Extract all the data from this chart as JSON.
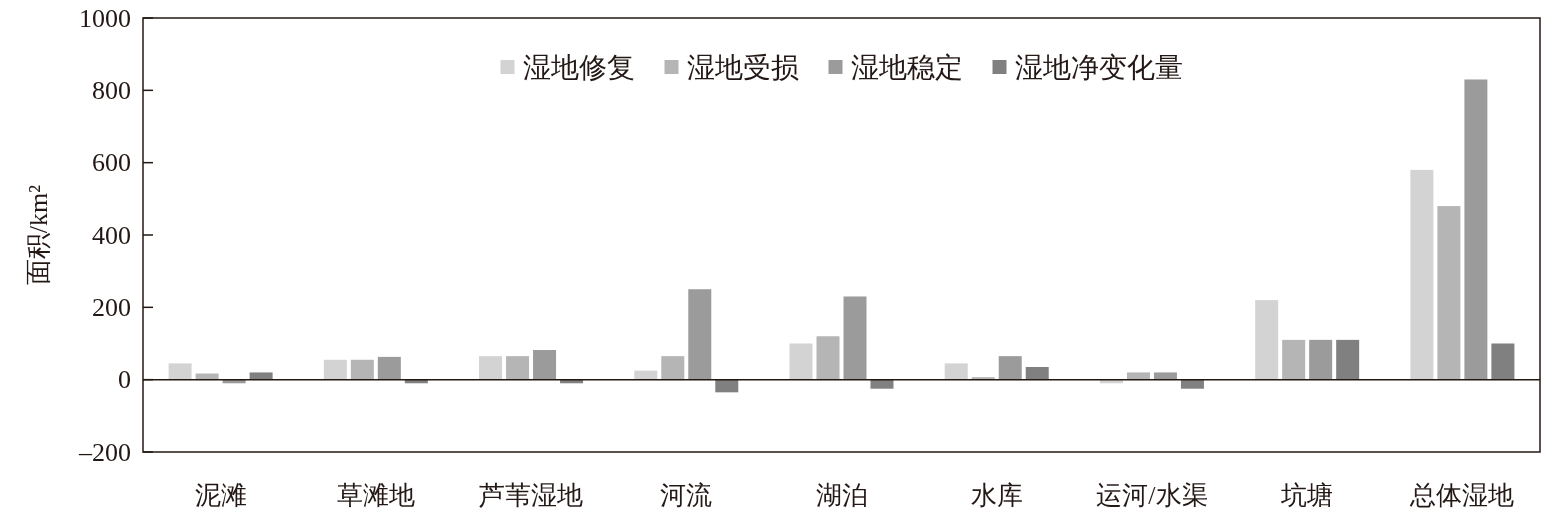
{
  "chart_data": {
    "type": "bar",
    "ylabel": "面积/km²",
    "categories": [
      "泥滩",
      "草滩地",
      "芦苇湿地",
      "河流",
      "湖泊",
      "水库",
      "运河/水渠",
      "坑塘",
      "总体湿地"
    ],
    "series": [
      {
        "name": "湿地修复",
        "color": "#d3d3d3",
        "values": [
          45,
          55,
          65,
          25,
          100,
          45,
          -10,
          220,
          580
        ]
      },
      {
        "name": "湿地受损",
        "color": "#b5b5b5",
        "values": [
          17,
          55,
          65,
          65,
          120,
          7,
          20,
          110,
          480
        ]
      },
      {
        "name": "湿地稳定",
        "color": "#9b9b9b",
        "values": [
          -10,
          63,
          82,
          250,
          230,
          65,
          20,
          110,
          830
        ]
      },
      {
        "name": "湿地净变化量",
        "color": "#808080",
        "values": [
          20,
          -10,
          -10,
          -35,
          -25,
          35,
          -25,
          110,
          100
        ]
      }
    ],
    "ylim": [
      -200,
      1000
    ],
    "yticks": [
      {
        "value": -200,
        "label": "–200"
      },
      0,
      200,
      400,
      600,
      800,
      1000
    ],
    "legend": "top"
  }
}
